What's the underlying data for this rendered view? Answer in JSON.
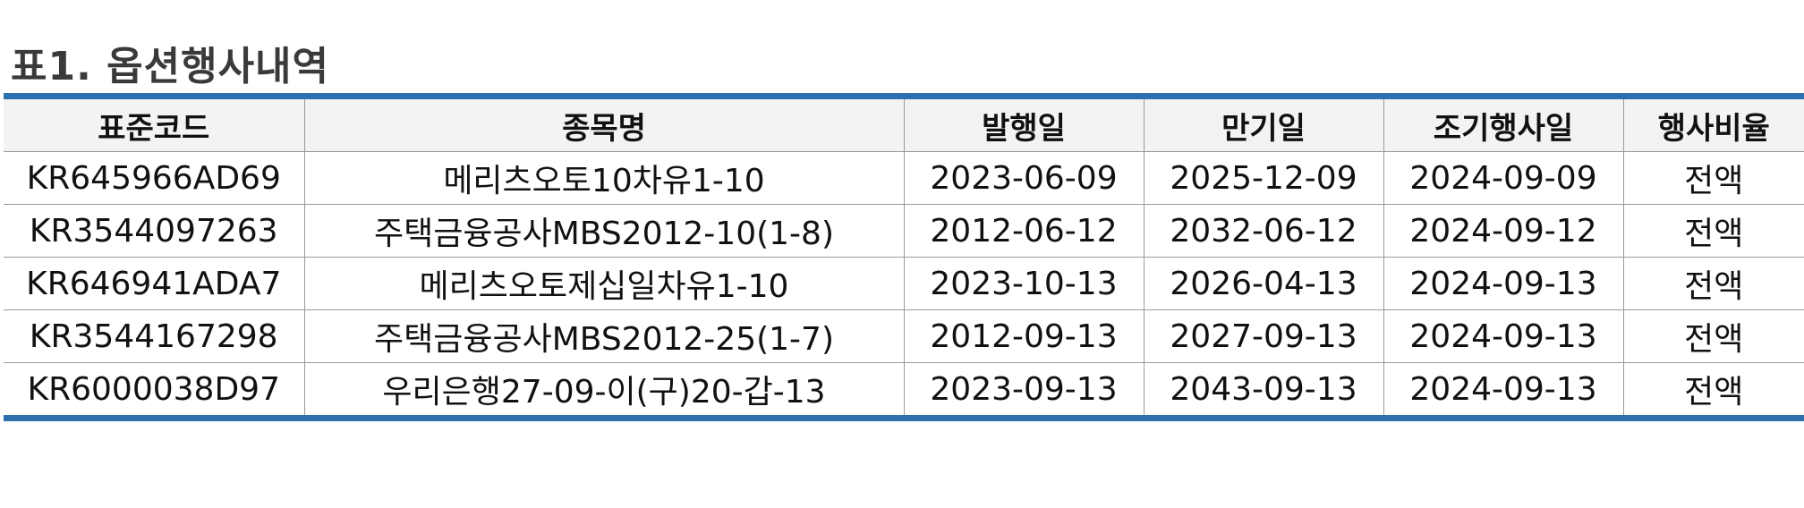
{
  "title": "표1. 옵션행사내역",
  "accent_color": "#2e6fb0",
  "header_background": "#f3f3f3",
  "table": {
    "columns": [
      "표준코드",
      "종목명",
      "발행일",
      "만기일",
      "조기행사일",
      "행사비율"
    ],
    "rows": [
      [
        "KR645966AD69",
        "메리츠오토10차유1-10",
        "2023-06-09",
        "2025-12-09",
        "2024-09-09",
        "전액"
      ],
      [
        "KR3544097263",
        "주택금융공사MBS2012-10(1-8)",
        "2012-06-12",
        "2032-06-12",
        "2024-09-12",
        "전액"
      ],
      [
        "KR646941ADA7",
        "메리츠오토제십일차유1-10",
        "2023-10-13",
        "2026-04-13",
        "2024-09-13",
        "전액"
      ],
      [
        "KR3544167298",
        "주택금융공사MBS2012-25(1-7)",
        "2012-09-13",
        "2027-09-13",
        "2024-09-13",
        "전액"
      ],
      [
        "KR6000038D97",
        "우리은행27-09-이(구)20-갑-13",
        "2023-09-13",
        "2043-09-13",
        "2024-09-13",
        "전액"
      ]
    ]
  }
}
